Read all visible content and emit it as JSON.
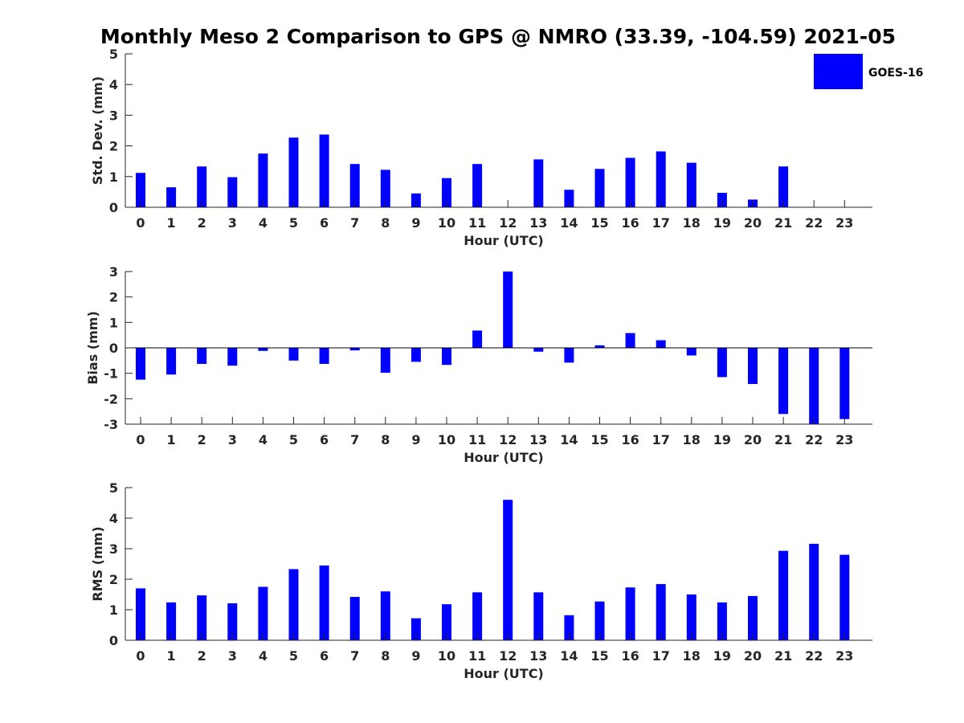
{
  "title": "Monthly Meso 2 Comparison to GPS @ NMRO (33.39, -104.59) 2021-05",
  "bar_color": "#0000ff",
  "axis_color": "#262626",
  "legend": {
    "label": "GOES-16",
    "placement": "top-right"
  },
  "chart_data": [
    {
      "type": "bar",
      "xlabel": "Hour (UTC)",
      "ylabel": "Std. Dev. (mm)",
      "categories": [
        "0",
        "1",
        "2",
        "3",
        "4",
        "5",
        "6",
        "7",
        "8",
        "9",
        "10",
        "11",
        "12",
        "13",
        "14",
        "15",
        "16",
        "17",
        "18",
        "19",
        "20",
        "21",
        "22",
        "23"
      ],
      "series": [
        {
          "name": "GOES-16",
          "values": [
            1.12,
            0.65,
            1.33,
            0.98,
            1.75,
            2.27,
            2.37,
            1.41,
            1.22,
            0.45,
            0.95,
            1.41,
            0,
            1.56,
            0.57,
            1.25,
            1.61,
            1.82,
            1.45,
            0.47,
            0.25,
            1.33,
            0,
            0
          ]
        }
      ],
      "ylim": [
        0,
        5
      ],
      "yticks": [
        "0",
        "1",
        "2",
        "3",
        "4",
        "5"
      ]
    },
    {
      "type": "bar",
      "xlabel": "Hour (UTC)",
      "ylabel": "Bias (mm)",
      "categories": [
        "0",
        "1",
        "2",
        "3",
        "4",
        "5",
        "6",
        "7",
        "8",
        "9",
        "10",
        "11",
        "12",
        "13",
        "14",
        "15",
        "16",
        "17",
        "18",
        "19",
        "20",
        "21",
        "22",
        "23"
      ],
      "series": [
        {
          "name": "GOES-16",
          "values": [
            -1.25,
            -1.05,
            -0.63,
            -0.7,
            -0.12,
            -0.5,
            -0.63,
            -0.1,
            -0.98,
            -0.55,
            -0.67,
            0.68,
            3.0,
            -0.15,
            -0.58,
            0.1,
            0.58,
            0.3,
            -0.3,
            -1.15,
            -1.42,
            -2.6,
            -3.0,
            -2.8
          ]
        }
      ],
      "ylim": [
        -3,
        3
      ],
      "yticks": [
        "-3",
        "-2",
        "-1",
        "0",
        "1",
        "2",
        "3"
      ]
    },
    {
      "type": "bar",
      "xlabel": "Hour (UTC)",
      "ylabel": "RMS (mm)",
      "categories": [
        "0",
        "1",
        "2",
        "3",
        "4",
        "5",
        "6",
        "7",
        "8",
        "9",
        "10",
        "11",
        "12",
        "13",
        "14",
        "15",
        "16",
        "17",
        "18",
        "19",
        "20",
        "21",
        "22",
        "23"
      ],
      "series": [
        {
          "name": "GOES-16",
          "values": [
            1.7,
            1.24,
            1.47,
            1.21,
            1.75,
            2.33,
            2.45,
            1.42,
            1.6,
            0.72,
            1.18,
            1.57,
            4.6,
            1.57,
            0.82,
            1.27,
            1.73,
            1.84,
            1.5,
            1.24,
            1.45,
            2.93,
            3.16,
            2.8
          ]
        }
      ],
      "ylim": [
        0,
        5
      ],
      "yticks": [
        "0",
        "1",
        "2",
        "3",
        "4",
        "5"
      ]
    }
  ]
}
